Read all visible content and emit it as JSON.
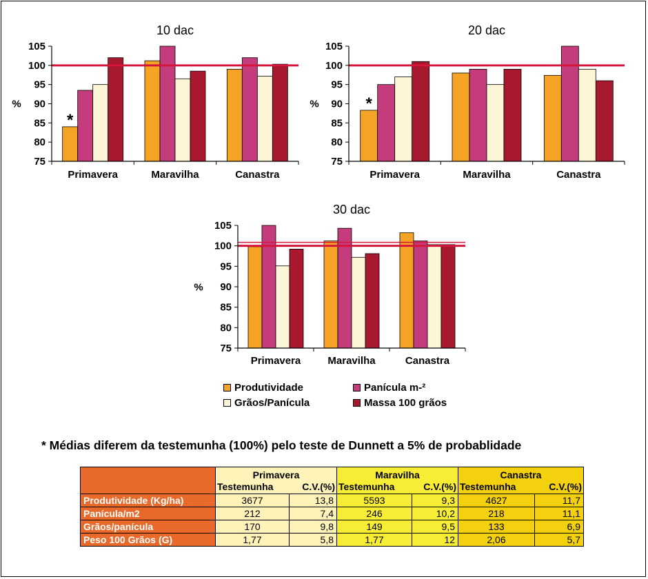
{
  "chart_data": [
    {
      "type": "bar",
      "title": "10 dac",
      "ylabel": "%",
      "ylim": [
        75,
        105
      ],
      "yticks": [
        75,
        80,
        85,
        90,
        95,
        100,
        105
      ],
      "categories": [
        "Primavera",
        "Maravilha",
        "Canastra"
      ],
      "reference_line": 100,
      "series": [
        {
          "name": "Produtividade",
          "values": [
            84,
            101.2,
            99
          ]
        },
        {
          "name": "Panícula m-²",
          "values": [
            93.5,
            105,
            102
          ]
        },
        {
          "name": "Grãos/Panícula",
          "values": [
            95,
            96.5,
            97.2
          ]
        },
        {
          "name": "Massa 100 grãos",
          "values": [
            102,
            98.5,
            100.3
          ]
        }
      ],
      "annotations": [
        {
          "text": "*",
          "category": "Primavera",
          "series": "Produtividade"
        }
      ]
    },
    {
      "type": "bar",
      "title": "20 dac",
      "ylabel": "%",
      "ylim": [
        75,
        105
      ],
      "yticks": [
        75,
        80,
        85,
        90,
        95,
        100,
        105
      ],
      "categories": [
        "Primavera",
        "Maravilha",
        "Canastra"
      ],
      "reference_line": 100,
      "series": [
        {
          "name": "Produtividade",
          "values": [
            88.3,
            98,
            97.4
          ]
        },
        {
          "name": "Panícula m-²",
          "values": [
            95,
            99,
            105
          ]
        },
        {
          "name": "Grãos/Panícula",
          "values": [
            97,
            95,
            99
          ]
        },
        {
          "name": "Massa 100 grãos",
          "values": [
            101,
            99,
            96
          ]
        }
      ],
      "annotations": [
        {
          "text": "*",
          "category": "Primavera",
          "series": "Produtividade"
        }
      ]
    },
    {
      "type": "bar",
      "title": "30 dac",
      "ylabel": "%",
      "ylim": [
        75,
        105
      ],
      "yticks": [
        75,
        80,
        85,
        90,
        95,
        100,
        105
      ],
      "categories": [
        "Primavera",
        "Maravilha",
        "Canastra"
      ],
      "reference_line": 100,
      "series": [
        {
          "name": "Produtividade",
          "values": [
            99.8,
            101.2,
            103.2
          ]
        },
        {
          "name": "Panícula m-²",
          "values": [
            105.8,
            104.3,
            101.2
          ]
        },
        {
          "name": "Grãos/Panícula",
          "values": [
            95.1,
            97.2,
            100.3
          ]
        },
        {
          "name": "Massa 100 grãos",
          "values": [
            99.2,
            98.1,
            100.3
          ]
        }
      ],
      "annotations": []
    }
  ],
  "colors": {
    "series": [
      "#f4a324",
      "#c43c7c",
      "#fdf6d6",
      "#a8192f"
    ],
    "reference_line": "#d4163c",
    "table_header": "#e8692a",
    "table_primavera": "#fdf3b8",
    "table_maravilha": "#f8ed35",
    "table_canastra": "#f4d10f"
  },
  "legend": {
    "items": [
      {
        "label": "Produtividade"
      },
      {
        "label": "Panícula m-²"
      },
      {
        "label": "Grãos/Panícula"
      },
      {
        "label": "Massa 100 grãos"
      }
    ]
  },
  "footnote": "* Médias diferem da testemunha (100%) pelo teste de Dunnett a 5% de probablidade",
  "table": {
    "groups": [
      {
        "name": "Primavera",
        "col1": "Testemunha",
        "col2": "C.V.(%)"
      },
      {
        "name": "Maravilha",
        "col1": "Testemunha",
        "col2": "C.V.(%)"
      },
      {
        "name": "Canastra",
        "col1": "Testemunha",
        "col2": "C.V.(%)"
      }
    ],
    "rows": [
      {
        "label": "Produtividade (Kg/ha)",
        "values": [
          "3677",
          "13,8",
          "5593",
          "9,3",
          "4627",
          "11,7"
        ]
      },
      {
        "label": "Panícula/m2",
        "values": [
          "212",
          "7,4",
          "246",
          "10,2",
          "218",
          "11,1"
        ]
      },
      {
        "label": "Grãos/panícula",
        "values": [
          "170",
          "9,8",
          "149",
          "9,5",
          "133",
          "6,9"
        ]
      },
      {
        "label": "Peso 100 Grãos (G)",
        "values": [
          "1,77",
          "5,8",
          "1,77",
          "12",
          "2,06",
          "5,7"
        ]
      }
    ]
  }
}
